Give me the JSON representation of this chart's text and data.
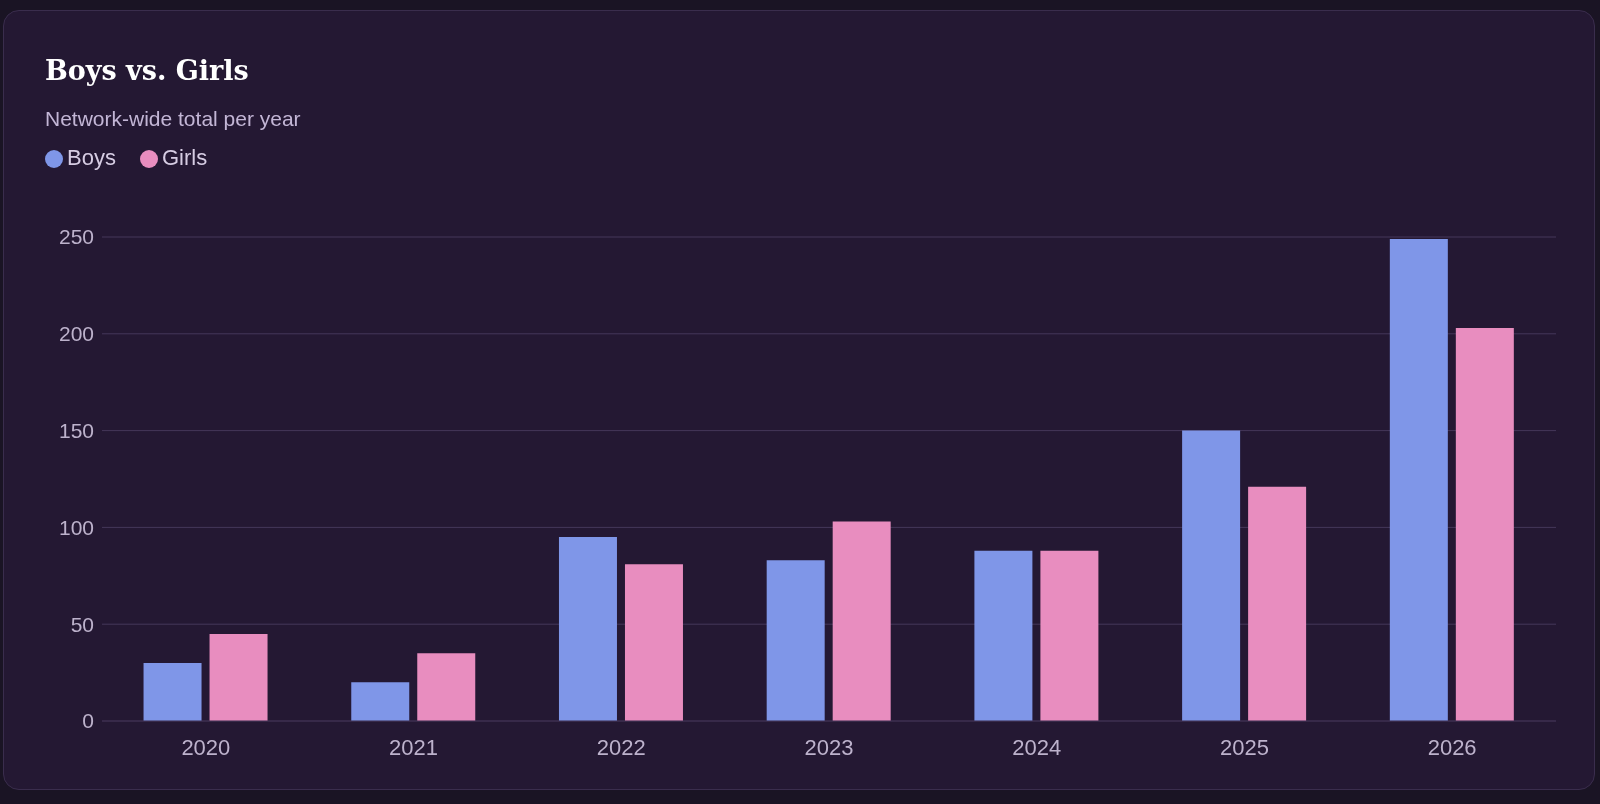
{
  "chart_data": {
    "type": "bar",
    "title": "Boys vs. Girls",
    "subtitle": "Network-wide total per year",
    "categories": [
      "2020",
      "2021",
      "2022",
      "2023",
      "2024",
      "2025",
      "2026"
    ],
    "series": [
      {
        "name": "Boys",
        "color": "#7f96e8",
        "values": [
          30,
          20,
          95,
          83,
          88,
          150,
          249
        ]
      },
      {
        "name": "Girls",
        "color": "#e88dbf",
        "values": [
          45,
          35,
          81,
          103,
          88,
          121,
          203
        ]
      }
    ],
    "ylim": [
      0,
      250
    ],
    "yticks": [
      0,
      50,
      100,
      150,
      200,
      250
    ],
    "grid": "y",
    "legend": "top left"
  }
}
